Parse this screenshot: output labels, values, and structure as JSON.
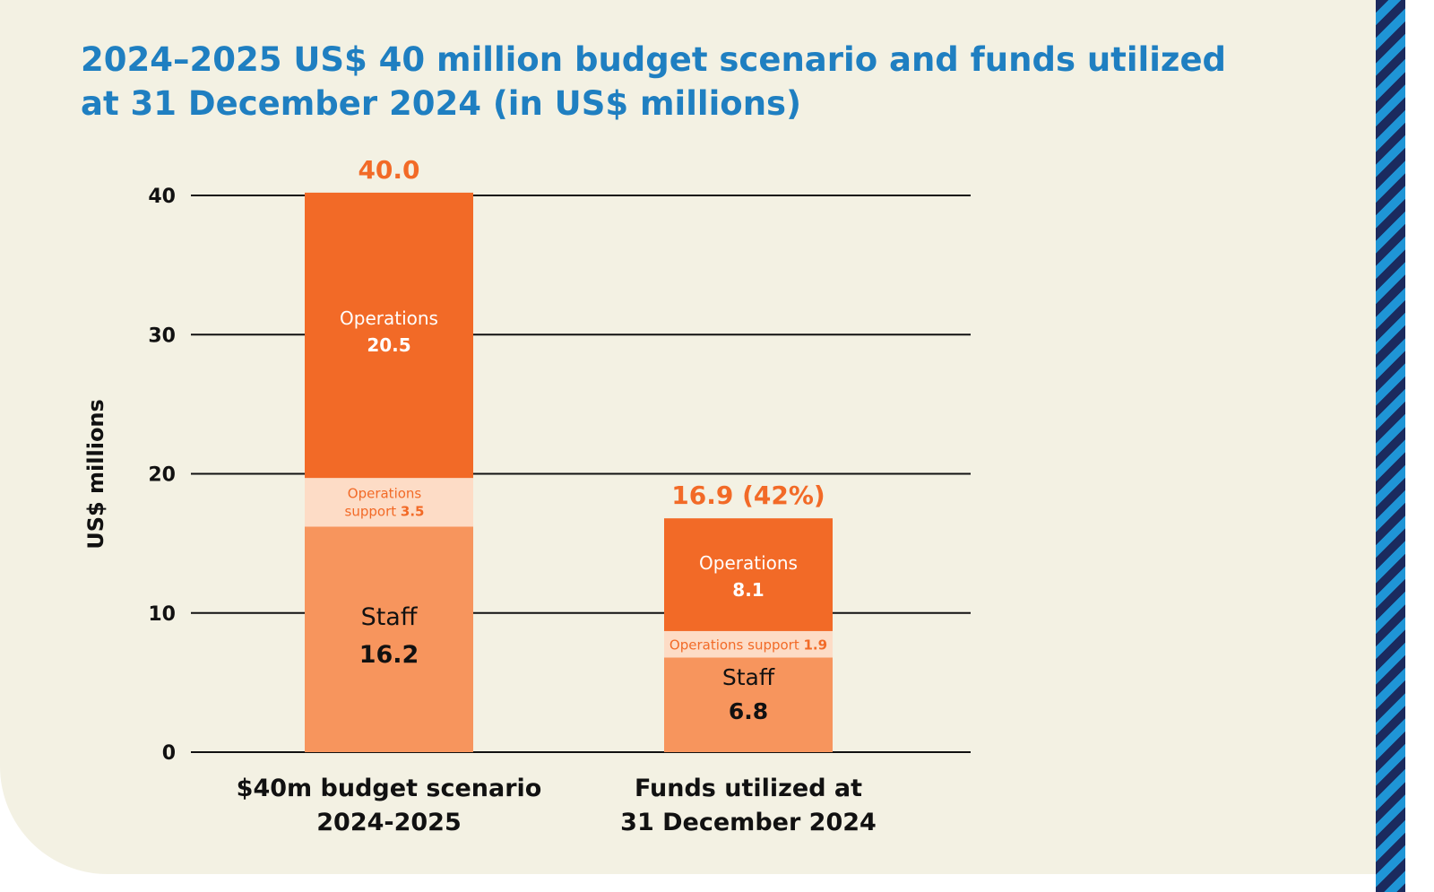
{
  "title_lines": [
    "2024–2025 US$ 40 million budget scenario and funds utilized",
    "at 31 December 2024 (in US$ millions)"
  ],
  "chart_data": {
    "type": "bar",
    "stacked": true,
    "title": "2024–2025 US$ 40 million budget scenario and funds utilized at 31 December 2024 (in US$ millions)",
    "ylabel": "US$ millions",
    "ylim": [
      0,
      40
    ],
    "yticks": [
      0,
      10,
      20,
      30,
      40
    ],
    "grid": true,
    "categories": [
      [
        "$40m budget scenario",
        "2024-2025"
      ],
      [
        "Funds utilized at",
        "31 December 2024"
      ]
    ],
    "totals": [
      "40.0",
      "16.9 (42%)"
    ],
    "series": [
      {
        "name": "Staff",
        "values": [
          16.2,
          6.8
        ],
        "color": "#f7955d"
      },
      {
        "name": "Operations support",
        "values": [
          3.5,
          1.9
        ],
        "color": "#fddcc6"
      },
      {
        "name": "Operations",
        "values": [
          20.5,
          8.1
        ],
        "color": "#f26a27"
      }
    ],
    "total_color": "#f26a27"
  }
}
